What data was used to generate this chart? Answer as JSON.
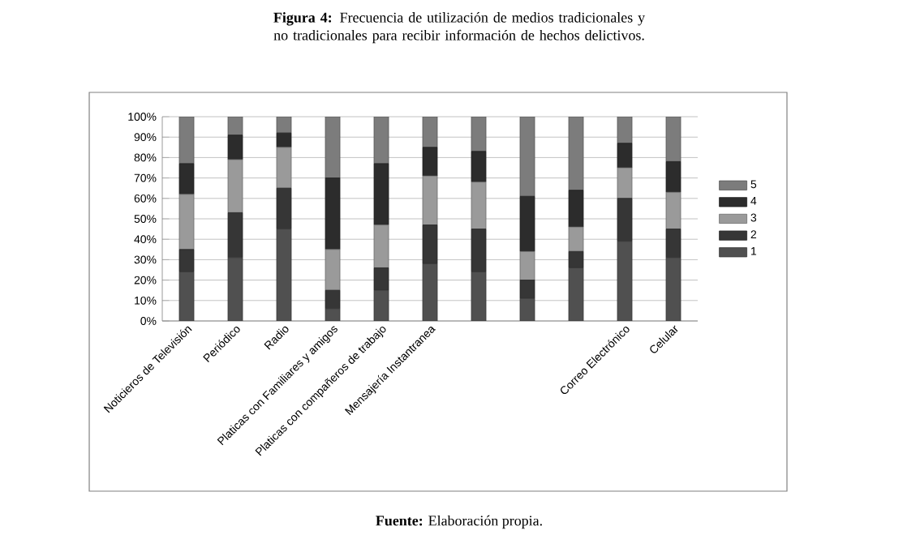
{
  "chart_data": {
    "type": "bar",
    "stacked": true,
    "title": "**Figura 4:** Frecuencia de utilización de medios tradicionales  y no tradicionales para recibir información de hechos delictivos.",
    "categories": [
      "Noticieros de Televisión",
      "Periódico",
      "Radio",
      "Platicas con Familiares y amigos",
      "Platicas con compañeros de trabajo",
      "Mensajería Instantranea",
      null,
      null,
      null,
      "Correo Electrónico",
      "Celular"
    ],
    "series": [
      {
        "name": "1",
        "color": "#505050",
        "values": [
          24,
          31,
          45,
          6,
          15,
          28,
          24,
          11,
          26,
          39,
          31
        ]
      },
      {
        "name": "2",
        "color": "#363636",
        "values": [
          11,
          22,
          20,
          9,
          11,
          19,
          21,
          9,
          8,
          21,
          14
        ]
      },
      {
        "name": "3",
        "color": "#9a9a9a",
        "values": [
          27,
          26,
          20,
          20,
          21,
          24,
          23,
          14,
          12,
          15,
          18
        ]
      },
      {
        "name": "4",
        "color": "#2c2c2c",
        "values": [
          15,
          12,
          7,
          35,
          30,
          14,
          15,
          27,
          18,
          12,
          15
        ]
      },
      {
        "name": "5",
        "color": "#7c7c7c",
        "values": [
          23,
          9,
          8,
          30,
          23,
          15,
          17,
          39,
          36,
          13,
          22
        ]
      }
    ],
    "ylim": [
      0,
      100
    ],
    "yticks": [
      {
        "value": 0,
        "label": "0%"
      },
      {
        "value": 10,
        "label": "10%"
      },
      {
        "value": 20,
        "label": "20%"
      },
      {
        "value": 30,
        "label": "30%"
      },
      {
        "value": 40,
        "label": "40%"
      },
      {
        "value": 50,
        "label": "50%"
      },
      {
        "value": 60,
        "label": "60%"
      },
      {
        "value": 70,
        "label": "70%"
      },
      {
        "value": 80,
        "label": "80%"
      },
      {
        "value": 90,
        "label": "90%"
      },
      {
        "value": 100,
        "label": "100%"
      }
    ],
    "grid": "y",
    "legend": "right",
    "annotations": [
      "**Fuente:** Elaboración propia."
    ]
  }
}
